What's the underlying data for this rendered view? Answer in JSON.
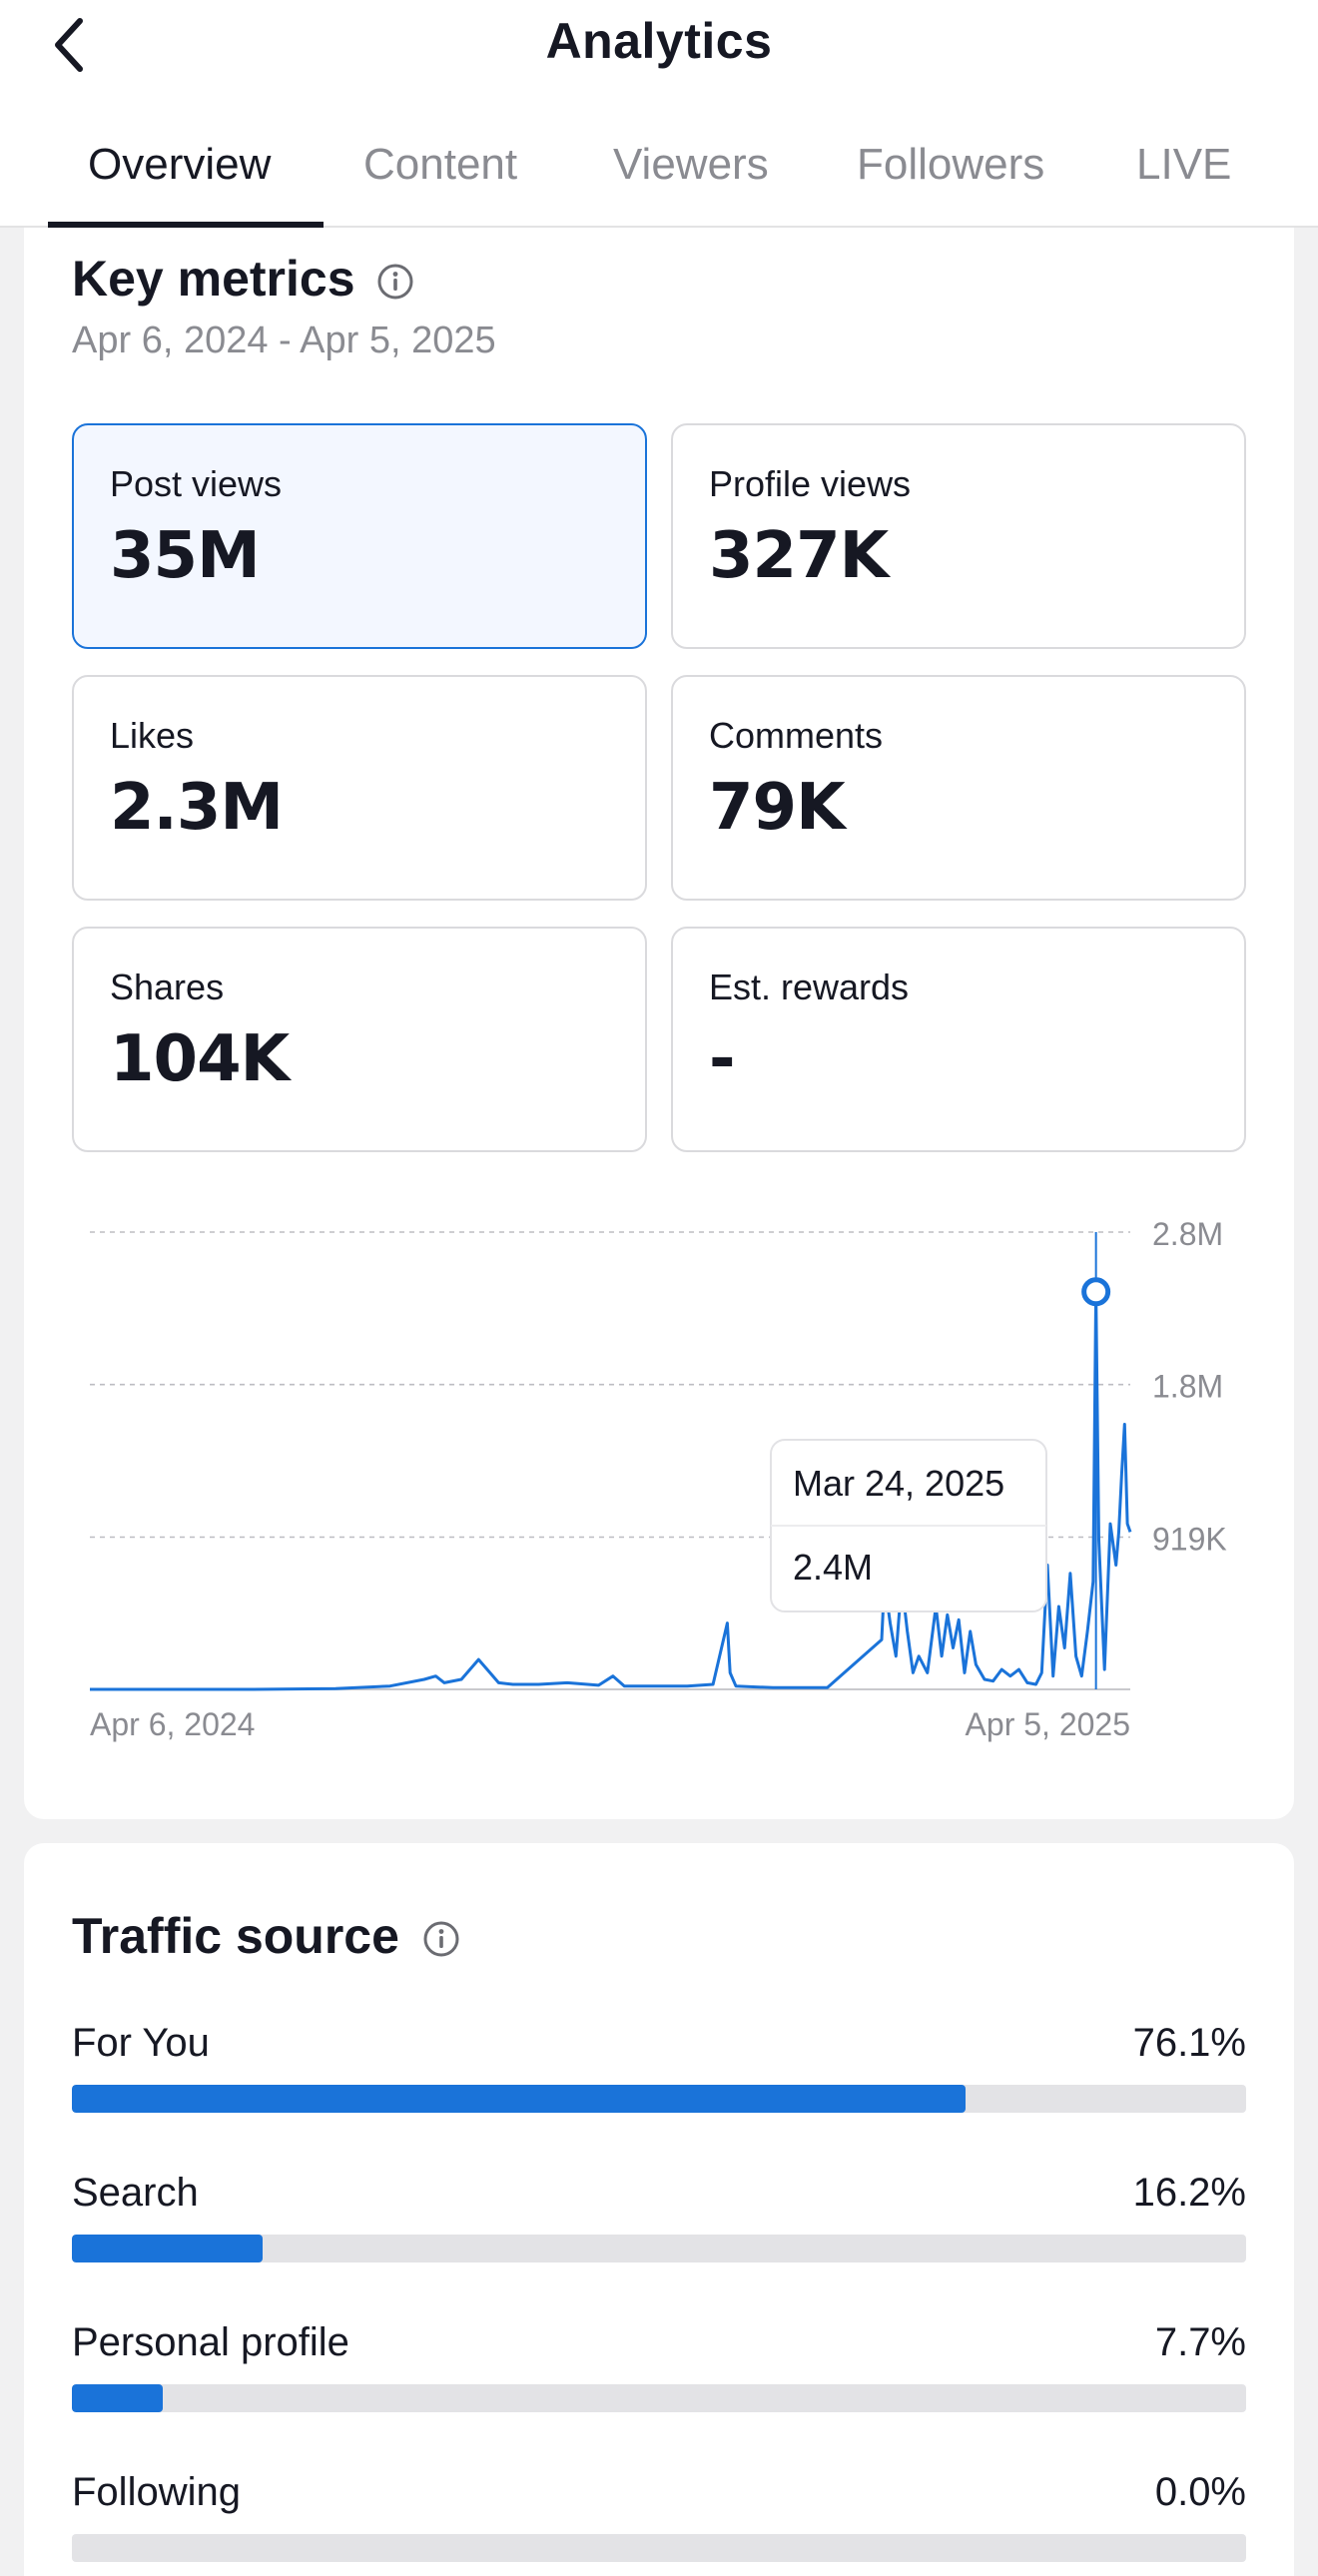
{
  "header": {
    "title": "Analytics",
    "tabs": [
      {
        "label": "Overview",
        "active": true
      },
      {
        "label": "Content",
        "active": false
      },
      {
        "label": "Viewers",
        "active": false
      },
      {
        "label": "Followers",
        "active": false
      },
      {
        "label": "LIVE",
        "active": false
      }
    ]
  },
  "key_metrics": {
    "title": "Key metrics",
    "date_range": "Apr 6, 2024 - Apr 5, 2025",
    "tiles": [
      {
        "label": "Post views",
        "value": "35M",
        "selected": true
      },
      {
        "label": "Profile views",
        "value": "327K",
        "selected": false
      },
      {
        "label": "Likes",
        "value": "2.3M",
        "selected": false
      },
      {
        "label": "Comments",
        "value": "79K",
        "selected": false
      },
      {
        "label": "Shares",
        "value": "104K",
        "selected": false
      },
      {
        "label": "Est. rewards",
        "value": "-",
        "selected": false
      }
    ]
  },
  "chart_data": {
    "type": "line",
    "series_metric": "Post views",
    "x_start_label": "Apr 6, 2024",
    "x_end_label": "Apr 5, 2025",
    "y_tick_labels": [
      "919K",
      "1.8M",
      "2.8M"
    ],
    "y_ticks": [
      919000,
      1840000,
      2760000
    ],
    "ylim": [
      0,
      2760000
    ],
    "grid": "dashed horizontal",
    "tooltip": {
      "date": "Mar 24, 2025",
      "value": "2.4M"
    },
    "highlight_point": {
      "x": "2025-03-24",
      "y": 2400000
    },
    "x": [
      "2024-04-06",
      "2024-05-01",
      "2024-06-01",
      "2024-07-01",
      "2024-07-20",
      "2024-08-01",
      "2024-08-05",
      "2024-08-08",
      "2024-08-14",
      "2024-08-20",
      "2024-08-24",
      "2024-08-27",
      "2024-09-01",
      "2024-09-10",
      "2024-09-20",
      "2024-10-01",
      "2024-10-06",
      "2024-10-10",
      "2024-10-20",
      "2024-11-01",
      "2024-11-10",
      "2024-11-15",
      "2024-11-16",
      "2024-11-18",
      "2024-12-01",
      "2024-12-20",
      "2025-01-08",
      "2025-01-09",
      "2025-01-11",
      "2025-01-13",
      "2025-01-15",
      "2025-01-17",
      "2025-01-19",
      "2025-01-21",
      "2025-01-24",
      "2025-01-27",
      "2025-01-29",
      "2025-01-31",
      "2025-02-02",
      "2025-02-04",
      "2025-02-06",
      "2025-02-08",
      "2025-02-10",
      "2025-02-13",
      "2025-02-16",
      "2025-02-19",
      "2025-02-22",
      "2025-02-25",
      "2025-02-28",
      "2025-03-03",
      "2025-03-05",
      "2025-03-07",
      "2025-03-09",
      "2025-03-11",
      "2025-03-13",
      "2025-03-15",
      "2025-03-17",
      "2025-03-19",
      "2025-03-21",
      "2025-03-23",
      "2025-03-24",
      "2025-03-25",
      "2025-03-27",
      "2025-03-29",
      "2025-03-31",
      "2025-04-01",
      "2025-04-02",
      "2025-04-03",
      "2025-04-04",
      "2025-04-05"
    ],
    "values": [
      0,
      0,
      0,
      5000,
      20000,
      60000,
      80000,
      40000,
      60000,
      180000,
      100000,
      40000,
      30000,
      30000,
      40000,
      25000,
      80000,
      20000,
      20000,
      20000,
      30000,
      400000,
      100000,
      20000,
      10000,
      10000,
      300000,
      650000,
      400000,
      200000,
      650000,
      350000,
      100000,
      200000,
      100000,
      500000,
      200000,
      450000,
      250000,
      420000,
      100000,
      350000,
      150000,
      60000,
      50000,
      120000,
      80000,
      120000,
      40000,
      30000,
      100000,
      750000,
      80000,
      500000,
      250000,
      700000,
      200000,
      80000,
      350000,
      650000,
      2400000,
      900000,
      120000,
      1000000,
      750000,
      950000,
      1300000,
      1600000,
      1000000,
      950000
    ]
  },
  "traffic_source": {
    "title": "Traffic source",
    "rows": [
      {
        "label": "For You",
        "percent": "76.1%",
        "value": 76.1
      },
      {
        "label": "Search",
        "percent": "16.2%",
        "value": 16.2
      },
      {
        "label": "Personal profile",
        "percent": "7.7%",
        "value": 7.7
      },
      {
        "label": "Following",
        "percent": "0.0%",
        "value": 0.0
      }
    ]
  },
  "colors": {
    "accent": "#1a73d9",
    "text": "#161823",
    "muted": "#8a8b91",
    "track": "#e3e3e6"
  }
}
